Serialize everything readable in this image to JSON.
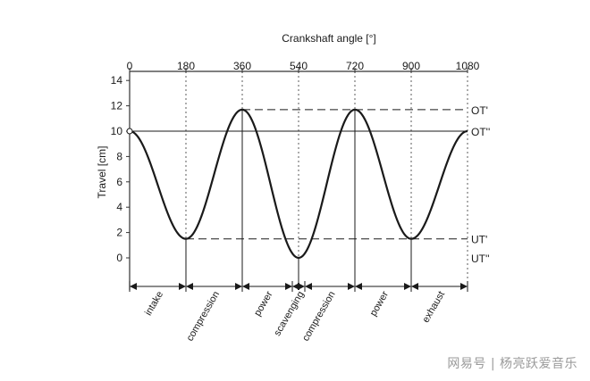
{
  "chart_data": {
    "type": "line",
    "x_top_label": "Crankshaft angle [°]",
    "ylabel": "Travel [cm]",
    "xlim": [
      0,
      1080
    ],
    "ylim": [
      -3,
      14
    ],
    "x_ticks": [
      0,
      180,
      360,
      540,
      720,
      900,
      1080
    ],
    "y_ticks": [
      0,
      2,
      4,
      6,
      8,
      10,
      12,
      14
    ],
    "series": [
      {
        "x": [
          0,
          180,
          360,
          540,
          720,
          900,
          1080
        ],
        "y": [
          10,
          1.5,
          11.7,
          0,
          11.7,
          1.5,
          10
        ]
      }
    ],
    "reference_lines": [
      {
        "label": "OT'",
        "value": 11.7,
        "style": "dashed"
      },
      {
        "label": "OT''",
        "value": 10,
        "style": "solid"
      },
      {
        "label": "UT'",
        "value": 1.5,
        "style": "dashed"
      },
      {
        "label": "UT''",
        "value": 0,
        "style": "none"
      }
    ],
    "phases": [
      {
        "label": "intake",
        "start": 0,
        "end": 180
      },
      {
        "label": "compression",
        "start": 180,
        "end": 360
      },
      {
        "label": "power",
        "start": 360,
        "end": 520
      },
      {
        "label": "scavenging",
        "start": 520,
        "end": 560
      },
      {
        "label": "compression",
        "start": 560,
        "end": 720
      },
      {
        "label": "power",
        "start": 720,
        "end": 900
      },
      {
        "label": "exhaust",
        "start": 900,
        "end": 1080
      }
    ],
    "grid": false
  },
  "watermark": "网易号 | 杨亮跃爱音乐",
  "colors": {
    "line": "#1a1a1a",
    "axis": "#333333"
  }
}
